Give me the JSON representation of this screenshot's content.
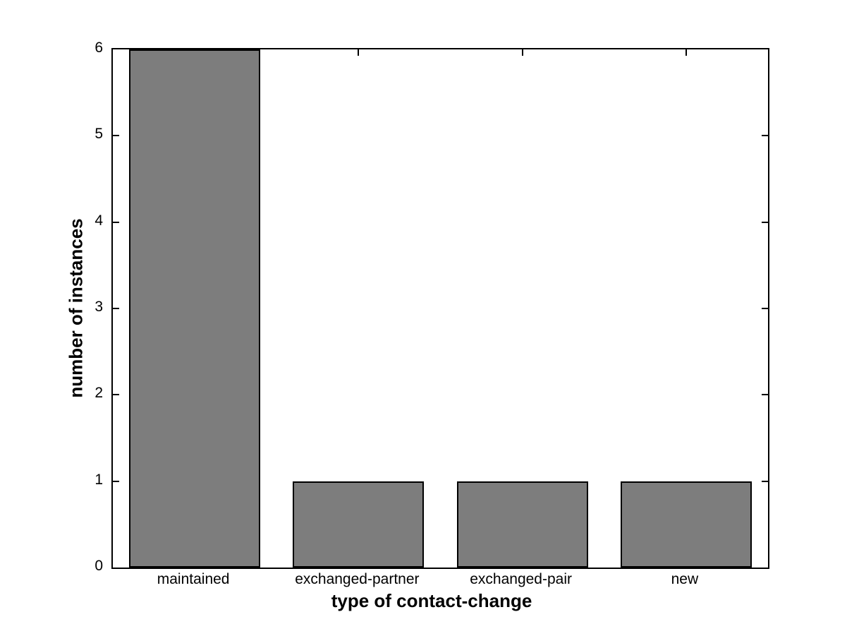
{
  "figure": {
    "background": "#ffffff"
  },
  "chart_data": {
    "type": "bar",
    "title": "",
    "categories": [
      "maintained",
      "exchanged-partner",
      "exchanged-pair",
      "new"
    ],
    "values": [
      6,
      1,
      1,
      1
    ],
    "xlabel": "type of contact-change",
    "ylabel": "number of instances",
    "ylim": [
      0,
      6
    ],
    "yticks": [
      0,
      1,
      2,
      3,
      4,
      5,
      6
    ],
    "grid": false,
    "legend": null,
    "bar_color": "#7d7d7d",
    "bar_edge_color": "#000000",
    "axis_color": "#000000",
    "bar_width_fraction": 0.8
  }
}
